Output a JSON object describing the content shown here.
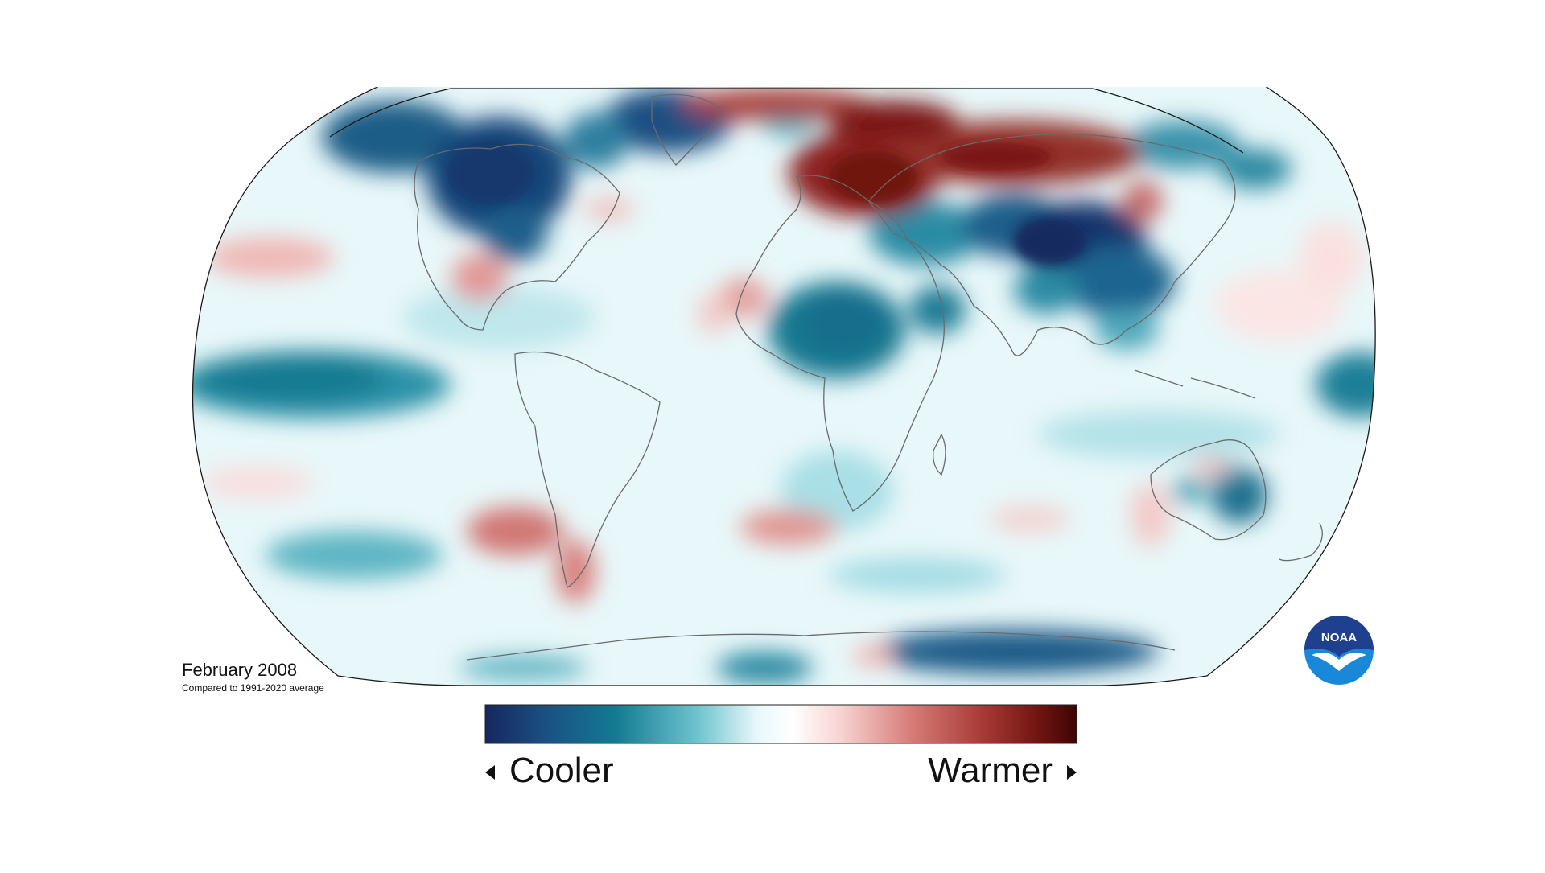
{
  "title": "February 2008",
  "subtitle": "Compared to 1991-2020 average",
  "legend": {
    "left_label": "Cooler",
    "right_label": "Warmer",
    "gradient": [
      "#16275e",
      "#1b4f82",
      "#137a92",
      "#6fc4cf",
      "#e8f8fa",
      "#ffffff",
      "#f7d4d2",
      "#d77c78",
      "#a83a36",
      "#741613",
      "#3e0402"
    ]
  },
  "logo": {
    "text": "NOAA",
    "colors": {
      "top": "#1f3f8f",
      "bottom": "#1a88d8"
    }
  },
  "colors": {
    "ocean_base": "#e7f7f9",
    "cool_deep": "#17386e",
    "cool_mid": "#1a7f97",
    "cool_light": "#8fd2da",
    "warm_light": "#efb9b6",
    "warm_mid": "#c45752",
    "warm_deep": "#7c1714",
    "coast": "#6a6a6a"
  }
}
